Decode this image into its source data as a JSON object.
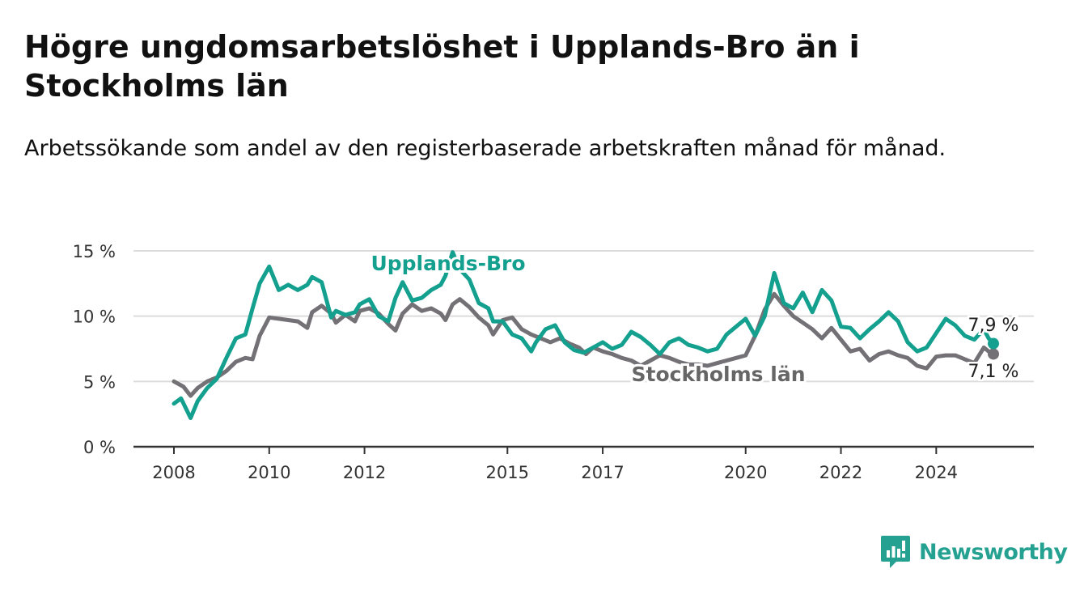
{
  "title": "Högre ungdomsarbetslöshet i Upplands-Bro än i Stockholms län",
  "subtitle": "Arbetssökande som andel av den registerbaserade arbetskraften månad för månad.",
  "brand": {
    "name": "Newsworthy",
    "color": "#25a191"
  },
  "chart_data": {
    "type": "line",
    "title": "Högre ungdomsarbetslöshet i Upplands-Bro än i Stockholms län",
    "subtitle": "Arbetssökande som andel av den registerbaserade arbetskraften månad för månad.",
    "xlabel": "",
    "ylabel": "",
    "ylim": [
      0,
      15
    ],
    "xlim": [
      2008,
      2025.2
    ],
    "y_ticks": [
      {
        "value": 0,
        "label": "0 %"
      },
      {
        "value": 5,
        "label": "5 %"
      },
      {
        "value": 10,
        "label": "10 %"
      },
      {
        "value": 15,
        "label": "15 %"
      }
    ],
    "x_ticks": [
      {
        "value": 2008,
        "label": "2008"
      },
      {
        "value": 2010,
        "label": "2010"
      },
      {
        "value": 2012,
        "label": "2012"
      },
      {
        "value": 2015,
        "label": "2015"
      },
      {
        "value": 2017,
        "label": "2017"
      },
      {
        "value": 2020,
        "label": "2020"
      },
      {
        "value": 2022,
        "label": "2022"
      },
      {
        "value": 2024,
        "label": "2024"
      }
    ],
    "grid": true,
    "series": [
      {
        "name": "Stockholms län",
        "color": "#747176",
        "end_label": "7,1 %",
        "points": [
          [
            2008.0,
            5.0
          ],
          [
            2008.2,
            4.6
          ],
          [
            2008.35,
            3.9
          ],
          [
            2008.5,
            4.5
          ],
          [
            2008.7,
            5.0
          ],
          [
            2008.9,
            5.3
          ],
          [
            2009.1,
            5.8
          ],
          [
            2009.3,
            6.5
          ],
          [
            2009.5,
            6.8
          ],
          [
            2009.65,
            6.7
          ],
          [
            2009.8,
            8.5
          ],
          [
            2010.0,
            9.9
          ],
          [
            2010.2,
            9.8
          ],
          [
            2010.4,
            9.7
          ],
          [
            2010.6,
            9.6
          ],
          [
            2010.8,
            9.1
          ],
          [
            2010.9,
            10.3
          ],
          [
            2011.1,
            10.8
          ],
          [
            2011.3,
            10.2
          ],
          [
            2011.4,
            9.5
          ],
          [
            2011.6,
            10.1
          ],
          [
            2011.8,
            9.6
          ],
          [
            2011.9,
            10.4
          ],
          [
            2012.1,
            10.6
          ],
          [
            2012.3,
            10.2
          ],
          [
            2012.5,
            9.4
          ],
          [
            2012.65,
            8.9
          ],
          [
            2012.8,
            10.2
          ],
          [
            2013.0,
            10.9
          ],
          [
            2013.2,
            10.4
          ],
          [
            2013.4,
            10.6
          ],
          [
            2013.6,
            10.2
          ],
          [
            2013.7,
            9.7
          ],
          [
            2013.85,
            10.9
          ],
          [
            2014.0,
            11.3
          ],
          [
            2014.2,
            10.7
          ],
          [
            2014.4,
            9.9
          ],
          [
            2014.6,
            9.3
          ],
          [
            2014.7,
            8.6
          ],
          [
            2014.9,
            9.7
          ],
          [
            2015.1,
            9.9
          ],
          [
            2015.3,
            9.0
          ],
          [
            2015.5,
            8.6
          ],
          [
            2015.7,
            8.3
          ],
          [
            2015.9,
            8.0
          ],
          [
            2016.1,
            8.3
          ],
          [
            2016.3,
            7.9
          ],
          [
            2016.5,
            7.6
          ],
          [
            2016.65,
            7.1
          ],
          [
            2016.8,
            7.6
          ],
          [
            2017.0,
            7.3
          ],
          [
            2017.2,
            7.1
          ],
          [
            2017.4,
            6.8
          ],
          [
            2017.6,
            6.6
          ],
          [
            2017.8,
            6.2
          ],
          [
            2018.0,
            6.6
          ],
          [
            2018.2,
            7.0
          ],
          [
            2018.4,
            6.8
          ],
          [
            2018.6,
            6.5
          ],
          [
            2018.8,
            6.3
          ],
          [
            2019.0,
            6.3
          ],
          [
            2019.2,
            6.2
          ],
          [
            2019.4,
            6.4
          ],
          [
            2019.6,
            6.6
          ],
          [
            2019.8,
            6.8
          ],
          [
            2020.0,
            7.0
          ],
          [
            2020.2,
            8.5
          ],
          [
            2020.4,
            10.5
          ],
          [
            2020.6,
            11.7
          ],
          [
            2020.8,
            10.8
          ],
          [
            2021.0,
            10.0
          ],
          [
            2021.2,
            9.5
          ],
          [
            2021.4,
            9.0
          ],
          [
            2021.6,
            8.3
          ],
          [
            2021.8,
            9.1
          ],
          [
            2022.0,
            8.2
          ],
          [
            2022.2,
            7.3
          ],
          [
            2022.4,
            7.5
          ],
          [
            2022.6,
            6.6
          ],
          [
            2022.8,
            7.1
          ],
          [
            2023.0,
            7.3
          ],
          [
            2023.2,
            7.0
          ],
          [
            2023.4,
            6.8
          ],
          [
            2023.6,
            6.2
          ],
          [
            2023.8,
            6.0
          ],
          [
            2024.0,
            6.9
          ],
          [
            2024.2,
            7.0
          ],
          [
            2024.4,
            7.0
          ],
          [
            2024.6,
            6.7
          ],
          [
            2024.8,
            6.4
          ],
          [
            2025.0,
            7.6
          ],
          [
            2025.1,
            7.3
          ],
          [
            2025.2,
            7.1
          ]
        ]
      },
      {
        "name": "Upplands-Bro",
        "color": "#14a08f",
        "end_label": "7,9 %",
        "points": [
          [
            2008.0,
            3.3
          ],
          [
            2008.15,
            3.7
          ],
          [
            2008.35,
            2.2
          ],
          [
            2008.5,
            3.5
          ],
          [
            2008.7,
            4.5
          ],
          [
            2008.9,
            5.2
          ],
          [
            2009.1,
            6.8
          ],
          [
            2009.3,
            8.3
          ],
          [
            2009.5,
            8.6
          ],
          [
            2009.65,
            10.6
          ],
          [
            2009.8,
            12.5
          ],
          [
            2010.0,
            13.8
          ],
          [
            2010.2,
            12.0
          ],
          [
            2010.4,
            12.4
          ],
          [
            2010.6,
            12.0
          ],
          [
            2010.8,
            12.4
          ],
          [
            2010.9,
            13.0
          ],
          [
            2011.1,
            12.6
          ],
          [
            2011.3,
            9.9
          ],
          [
            2011.4,
            10.4
          ],
          [
            2011.6,
            10.1
          ],
          [
            2011.8,
            10.3
          ],
          [
            2011.9,
            10.9
          ],
          [
            2012.1,
            11.3
          ],
          [
            2012.3,
            10.0
          ],
          [
            2012.5,
            9.6
          ],
          [
            2012.65,
            11.4
          ],
          [
            2012.8,
            12.6
          ],
          [
            2013.0,
            11.2
          ],
          [
            2013.2,
            11.4
          ],
          [
            2013.4,
            12.0
          ],
          [
            2013.6,
            12.4
          ],
          [
            2013.7,
            13.1
          ],
          [
            2013.85,
            14.9
          ],
          [
            2014.0,
            13.6
          ],
          [
            2014.2,
            12.8
          ],
          [
            2014.4,
            11.0
          ],
          [
            2014.6,
            10.6
          ],
          [
            2014.7,
            9.6
          ],
          [
            2014.9,
            9.6
          ],
          [
            2015.1,
            8.6
          ],
          [
            2015.3,
            8.3
          ],
          [
            2015.5,
            7.3
          ],
          [
            2015.6,
            8.0
          ],
          [
            2015.8,
            9.0
          ],
          [
            2016.0,
            9.3
          ],
          [
            2016.2,
            8.0
          ],
          [
            2016.4,
            7.4
          ],
          [
            2016.6,
            7.2
          ],
          [
            2016.8,
            7.6
          ],
          [
            2017.0,
            8.0
          ],
          [
            2017.2,
            7.5
          ],
          [
            2017.4,
            7.8
          ],
          [
            2017.6,
            8.8
          ],
          [
            2017.8,
            8.4
          ],
          [
            2018.0,
            7.8
          ],
          [
            2018.2,
            7.1
          ],
          [
            2018.4,
            8.0
          ],
          [
            2018.6,
            8.3
          ],
          [
            2018.8,
            7.8
          ],
          [
            2019.0,
            7.6
          ],
          [
            2019.2,
            7.3
          ],
          [
            2019.4,
            7.5
          ],
          [
            2019.6,
            8.6
          ],
          [
            2019.8,
            9.2
          ],
          [
            2020.0,
            9.8
          ],
          [
            2020.2,
            8.5
          ],
          [
            2020.4,
            10.0
          ],
          [
            2020.6,
            13.3
          ],
          [
            2020.8,
            11.0
          ],
          [
            2021.0,
            10.6
          ],
          [
            2021.2,
            11.8
          ],
          [
            2021.4,
            10.3
          ],
          [
            2021.6,
            12.0
          ],
          [
            2021.8,
            11.2
          ],
          [
            2022.0,
            9.2
          ],
          [
            2022.2,
            9.1
          ],
          [
            2022.4,
            8.3
          ],
          [
            2022.6,
            9.0
          ],
          [
            2022.8,
            9.6
          ],
          [
            2023.0,
            10.3
          ],
          [
            2023.2,
            9.6
          ],
          [
            2023.4,
            8.0
          ],
          [
            2023.6,
            7.3
          ],
          [
            2023.8,
            7.6
          ],
          [
            2024.0,
            8.7
          ],
          [
            2024.2,
            9.8
          ],
          [
            2024.4,
            9.3
          ],
          [
            2024.6,
            8.5
          ],
          [
            2024.8,
            8.2
          ],
          [
            2025.0,
            9.0
          ],
          [
            2025.1,
            8.3
          ],
          [
            2025.2,
            7.9
          ]
        ]
      }
    ]
  }
}
